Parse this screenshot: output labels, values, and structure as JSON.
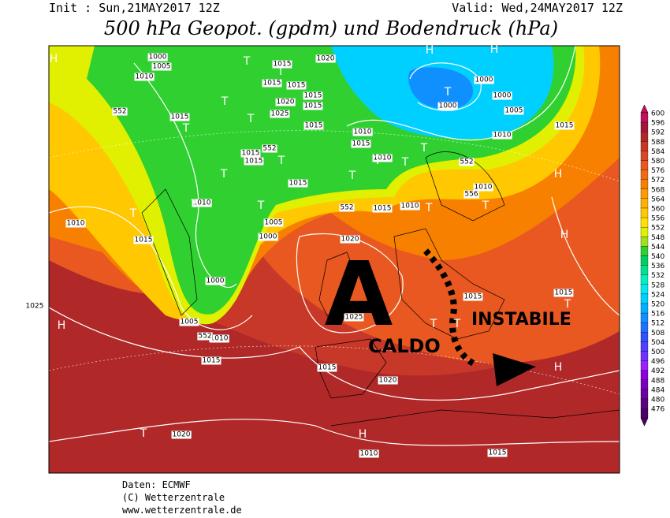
{
  "header": {
    "init": "Init : Sun,21MAY2017 12Z",
    "valid": "Valid: Wed,24MAY2017 12Z",
    "title": "500 hPa Geopot. (gpdm) und Bodendruck (hPa)"
  },
  "legend": {
    "levels": [
      600,
      596,
      592,
      588,
      584,
      580,
      576,
      572,
      568,
      564,
      560,
      556,
      552,
      548,
      544,
      540,
      536,
      532,
      528,
      524,
      520,
      516,
      512,
      508,
      504,
      500,
      496,
      492,
      488,
      484,
      480,
      476
    ],
    "colors": [
      "#c0105a",
      "#a01838",
      "#b02828",
      "#c83828",
      "#d84828",
      "#e85820",
      "#f06a10",
      "#f88000",
      "#ff9a00",
      "#ffb000",
      "#ffc800",
      "#ffe000",
      "#e0f000",
      "#a0e020",
      "#30d030",
      "#00d060",
      "#00e090",
      "#00f0c0",
      "#00e8f0",
      "#00d0ff",
      "#00b0ff",
      "#1090ff",
      "#2070ff",
      "#3050ff",
      "#5040ff",
      "#7030ff",
      "#9a20ff",
      "#8a00e0",
      "#7a00c0",
      "#6a00a0",
      "#5a0080",
      "#4b0066"
    ]
  },
  "map": {
    "isobar_labels": [
      1000,
      1005,
      1010,
      1015,
      1015,
      1015,
      1020,
      1015,
      1015,
      1020,
      1025,
      1015,
      1015,
      1010,
      1015,
      1010,
      1015,
      1015,
      1015,
      1010,
      1010,
      1015,
      1005,
      1000,
      1000,
      1005,
      1010,
      1015,
      1020,
      1025,
      1015,
      1020,
      1015,
      1010,
      1010,
      1000,
      1000,
      1000,
      1005,
      1010,
      1015,
      1015,
      1015,
      1020,
      1015,
      1010,
      552,
      552,
      552,
      552,
      556,
      552,
      1025
    ],
    "centers": [
      "H",
      "T",
      "H",
      "H",
      "T",
      "T",
      "T",
      "T",
      "T",
      "T",
      "T",
      "T",
      "T",
      "T",
      "T",
      "T",
      "T",
      "T",
      "T",
      "T",
      "H",
      "H",
      "T",
      "T",
      "T",
      "H",
      "H",
      "T",
      "H"
    ],
    "annotations": {
      "high": "A",
      "warm": "CALDO",
      "unstable": "INSTABILE"
    }
  },
  "footer": {
    "source": "Daten: ECMWF",
    "copyright": "(C) Wetterzentrale",
    "url": "www.wetterzentrale.de"
  }
}
